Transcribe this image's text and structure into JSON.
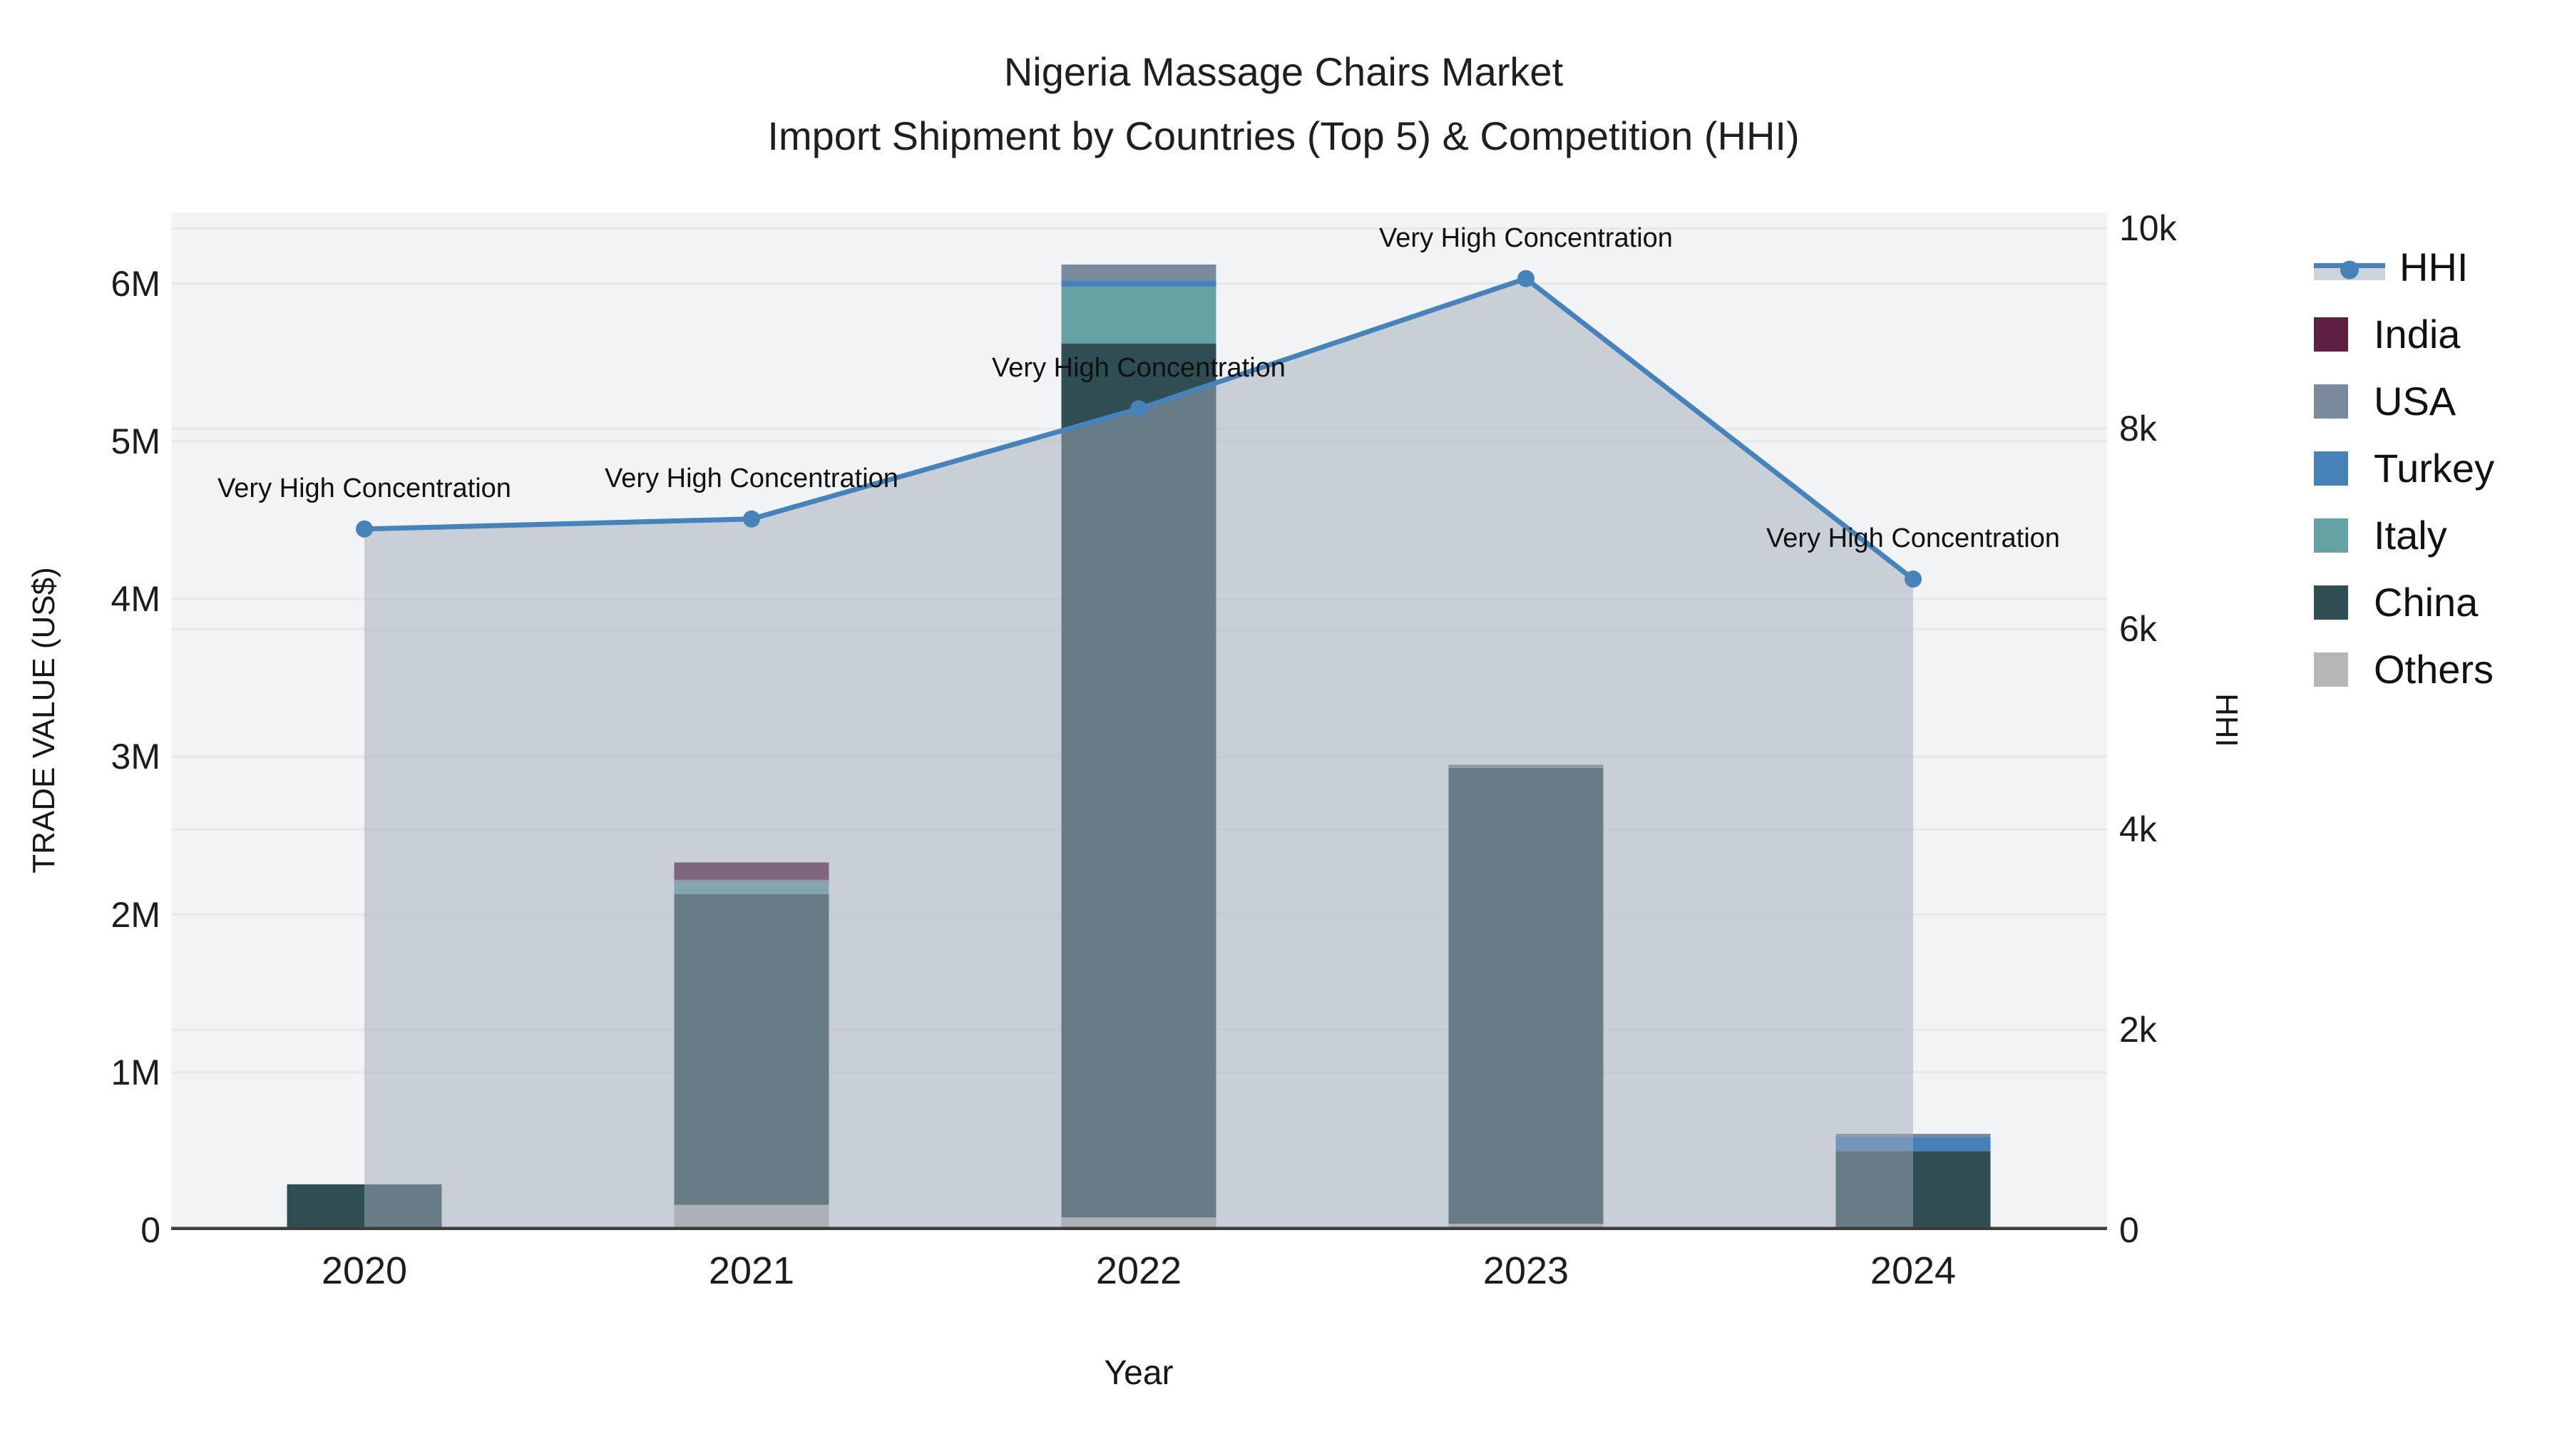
{
  "title": {
    "line1": "Nigeria Massage Chairs Market",
    "line2": "Import Shipment by Countries (Top 5) & Competition (HHI)"
  },
  "axes": {
    "left": {
      "title": "TRADE VALUE (US$)",
      "ticks": [
        "0",
        "1M",
        "2M",
        "3M",
        "4M",
        "5M",
        "6M"
      ],
      "tick_values_musd": [
        0,
        1,
        2,
        3,
        4,
        5,
        6
      ]
    },
    "right": {
      "title": "HHI",
      "ticks": [
        "0",
        "2k",
        "4k",
        "6k",
        "8k",
        "10k"
      ],
      "tick_values": [
        0,
        2000,
        4000,
        6000,
        8000,
        10000
      ]
    },
    "x": {
      "title": "Year",
      "ticks": [
        "2020",
        "2021",
        "2022",
        "2023",
        "2024"
      ]
    }
  },
  "chart_data": {
    "type": "combo: stacked-bar + line-area",
    "categories": [
      "2020",
      "2021",
      "2022",
      "2023",
      "2024"
    ],
    "bar_value_unit": "million US$",
    "ylim_left_musd": [
      0,
      6.45
    ],
    "ylim_right_hhi": [
      0,
      10160
    ],
    "grid": true,
    "series": [
      {
        "name": "Others",
        "color": "#b4b6b7",
        "values": [
          0.02,
          0.16,
          0.08,
          0.04,
          0.01
        ]
      },
      {
        "name": "China",
        "color": "#2f4d53",
        "values": [
          0.27,
          1.97,
          5.54,
          2.89,
          0.49
        ]
      },
      {
        "name": "Italy",
        "color": "#64a2a3",
        "values": [
          0,
          0.07,
          0.36,
          0,
          0
        ]
      },
      {
        "name": "Turkey",
        "color": "#4681b8",
        "values": [
          0,
          0,
          0.04,
          0,
          0.09
        ]
      },
      {
        "name": "USA",
        "color": "#7b8b9d",
        "values": [
          0,
          0.02,
          0.1,
          0.02,
          0.02
        ]
      },
      {
        "name": "India",
        "color": "#5e1f42",
        "values": [
          0,
          0.11,
          0,
          0,
          0
        ]
      }
    ],
    "line": {
      "name": "HHI",
      "axis": "right",
      "color": "#4583ba",
      "area_fill": "rgba(159,171,185,0.5)",
      "values": [
        7000,
        7100,
        8200,
        9500,
        6500
      ]
    },
    "annotations": [
      "Very High Concentration",
      "Very High Concentration",
      "Very High Concentration",
      "Very High Concentration",
      "Very High Concentration"
    ]
  },
  "legend": {
    "items": [
      {
        "label": "HHI",
        "type": "line",
        "color": "#4583ba"
      },
      {
        "label": "India",
        "type": "square",
        "color": "#5e1f42"
      },
      {
        "label": "USA",
        "type": "square",
        "color": "#7b8b9d"
      },
      {
        "label": "Turkey",
        "type": "square",
        "color": "#4681b8"
      },
      {
        "label": "Italy",
        "type": "square",
        "color": "#64a2a3"
      },
      {
        "label": "China",
        "type": "square",
        "color": "#2f4d53"
      },
      {
        "label": "Others",
        "type": "square",
        "color": "#b4b6b7"
      }
    ]
  },
  "colors": {
    "plot_background": "#f2f3f4",
    "gridline": "#e7e8ea",
    "x_axis_line": "#3d3d3d"
  }
}
